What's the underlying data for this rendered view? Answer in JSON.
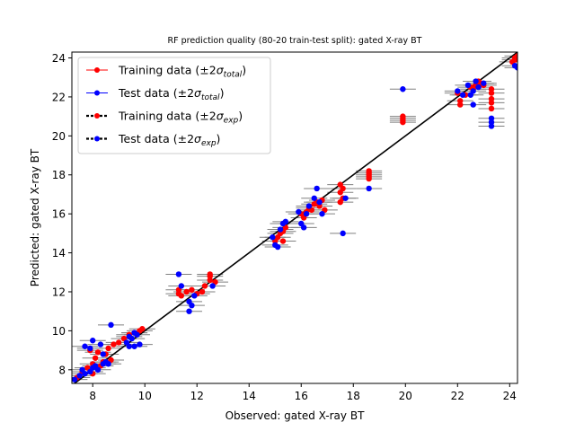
{
  "chart_data": {
    "type": "scatter",
    "title": "RF prediction quality (80-20 train-test split): gated X-ray BT",
    "xlabel": "Observed: gated X-ray BT",
    "ylabel": "Predicted: gated X-ray BT",
    "xlim": [
      7.2,
      24.3
    ],
    "ylim": [
      7.3,
      24.3
    ],
    "xticks": [
      8,
      10,
      12,
      14,
      16,
      18,
      20,
      22,
      24
    ],
    "yticks": [
      8,
      10,
      12,
      14,
      16,
      18,
      20,
      22,
      24
    ],
    "legend_location": "upper-left",
    "legend": [
      {
        "prefix": "Training data (±2",
        "sigma_sub": "total",
        "color": "#ff0000",
        "line_color": "#ff0000",
        "style": "total"
      },
      {
        "prefix": "Test data (±2",
        "sigma_sub": "total",
        "color": "#0000ff",
        "line_color": "#0000ff",
        "style": "total"
      },
      {
        "prefix": "Training data (±2",
        "sigma_sub": "exp",
        "color": "#ff0000",
        "line_color": "#000000",
        "style": "exp"
      },
      {
        "prefix": "Test data (±2",
        "sigma_sub": "exp",
        "color": "#0000ff",
        "line_color": "#000000",
        "style": "exp"
      }
    ],
    "identity_line": {
      "from": [
        7.2,
        7.2
      ],
      "to": [
        24.3,
        24.3
      ],
      "color": "#000000"
    },
    "series": [
      {
        "name": "Training data",
        "color": "#ff0000",
        "x_error": 0.5,
        "points": [
          [
            7.4,
            7.6
          ],
          [
            7.6,
            7.9
          ],
          [
            7.8,
            8.1
          ],
          [
            8.0,
            8.3
          ],
          [
            8.1,
            8.6
          ],
          [
            8.2,
            8.9
          ],
          [
            8.3,
            8.2
          ],
          [
            8.5,
            8.8
          ],
          [
            8.6,
            9.1
          ],
          [
            8.8,
            9.3
          ],
          [
            9.0,
            9.4
          ],
          [
            9.2,
            9.6
          ],
          [
            9.4,
            9.8
          ],
          [
            9.6,
            9.9
          ],
          [
            9.8,
            10.0
          ],
          [
            9.9,
            10.1
          ],
          [
            8.0,
            7.8
          ],
          [
            8.4,
            8.4
          ],
          [
            7.9,
            9.0
          ],
          [
            8.7,
            8.5
          ],
          [
            11.3,
            11.9
          ],
          [
            11.3,
            12.1
          ],
          [
            11.4,
            11.8
          ],
          [
            11.6,
            12.0
          ],
          [
            11.8,
            12.1
          ],
          [
            12.0,
            11.9
          ],
          [
            12.2,
            12.0
          ],
          [
            12.5,
            12.6
          ],
          [
            12.5,
            12.8
          ],
          [
            12.5,
            12.9
          ],
          [
            12.3,
            12.3
          ],
          [
            12.7,
            12.5
          ],
          [
            15.0,
            14.6
          ],
          [
            15.1,
            14.8
          ],
          [
            15.2,
            15.0
          ],
          [
            15.3,
            15.1
          ],
          [
            15.3,
            14.6
          ],
          [
            15.4,
            15.3
          ],
          [
            16.0,
            16.0
          ],
          [
            16.1,
            15.8
          ],
          [
            16.2,
            16.1
          ],
          [
            16.3,
            16.3
          ],
          [
            16.4,
            16.2
          ],
          [
            16.5,
            16.5
          ],
          [
            16.6,
            16.6
          ],
          [
            16.7,
            16.4
          ],
          [
            16.8,
            16.7
          ],
          [
            16.9,
            16.2
          ],
          [
            17.5,
            17.5
          ],
          [
            17.6,
            17.3
          ],
          [
            17.5,
            17.1
          ],
          [
            17.6,
            16.8
          ],
          [
            17.5,
            16.6
          ],
          [
            18.6,
            18.2
          ],
          [
            18.6,
            18.1
          ],
          [
            18.6,
            18.0
          ],
          [
            18.6,
            17.9
          ],
          [
            18.6,
            17.8
          ],
          [
            19.9,
            21.0
          ],
          [
            19.9,
            20.8
          ],
          [
            19.9,
            20.9
          ],
          [
            19.9,
            20.7
          ],
          [
            22.0,
            22.2
          ],
          [
            22.1,
            21.8
          ],
          [
            22.1,
            21.6
          ],
          [
            22.3,
            22.1
          ],
          [
            22.5,
            22.5
          ],
          [
            22.6,
            22.4
          ],
          [
            22.7,
            22.6
          ],
          [
            22.8,
            22.8
          ],
          [
            22.9,
            22.7
          ],
          [
            23.0,
            22.6
          ],
          [
            23.3,
            22.4
          ],
          [
            23.3,
            22.2
          ],
          [
            23.3,
            21.9
          ],
          [
            23.3,
            21.7
          ],
          [
            23.3,
            21.4
          ],
          [
            24.2,
            24.0
          ],
          [
            24.2,
            23.9
          ],
          [
            24.3,
            24.1
          ],
          [
            24.1,
            23.8
          ]
        ]
      },
      {
        "name": "Test data",
        "color": "#0000ff",
        "x_error": 0.5,
        "points": [
          [
            7.3,
            7.5
          ],
          [
            7.5,
            7.7
          ],
          [
            7.6,
            8.0
          ],
          [
            7.7,
            7.8
          ],
          [
            7.9,
            7.9
          ],
          [
            8.0,
            8.1
          ],
          [
            8.1,
            8.2
          ],
          [
            8.2,
            8.0
          ],
          [
            8.4,
            8.3
          ],
          [
            8.5,
            8.4
          ],
          [
            8.6,
            8.3
          ],
          [
            7.7,
            9.2
          ],
          [
            7.9,
            9.1
          ],
          [
            8.0,
            9.5
          ],
          [
            8.3,
            9.3
          ],
          [
            8.7,
            10.3
          ],
          [
            8.4,
            8.8
          ],
          [
            9.3,
            9.4
          ],
          [
            9.4,
            9.7
          ],
          [
            9.5,
            9.6
          ],
          [
            9.6,
            9.9
          ],
          [
            9.6,
            9.2
          ],
          [
            9.8,
            9.3
          ],
          [
            9.4,
            9.2
          ],
          [
            9.7,
            9.8
          ],
          [
            11.3,
            12.9
          ],
          [
            11.4,
            12.3
          ],
          [
            11.7,
            11.0
          ],
          [
            11.7,
            11.5
          ],
          [
            11.8,
            11.3
          ],
          [
            11.9,
            11.8
          ],
          [
            12.6,
            12.3
          ],
          [
            14.9,
            14.8
          ],
          [
            15.0,
            14.4
          ],
          [
            15.1,
            14.3
          ],
          [
            15.2,
            15.2
          ],
          [
            15.3,
            15.5
          ],
          [
            15.4,
            15.6
          ],
          [
            15.9,
            16.1
          ],
          [
            16.0,
            15.5
          ],
          [
            16.1,
            15.3
          ],
          [
            16.2,
            16.0
          ],
          [
            16.3,
            16.4
          ],
          [
            16.5,
            16.8
          ],
          [
            16.6,
            17.3
          ],
          [
            16.7,
            16.6
          ],
          [
            16.8,
            16.0
          ],
          [
            17.6,
            15.0
          ],
          [
            17.7,
            16.8
          ],
          [
            18.6,
            17.3
          ],
          [
            19.9,
            22.4
          ],
          [
            22.0,
            22.3
          ],
          [
            22.2,
            22.1
          ],
          [
            22.4,
            22.6
          ],
          [
            22.5,
            22.1
          ],
          [
            22.6,
            22.3
          ],
          [
            22.7,
            22.8
          ],
          [
            22.8,
            22.5
          ],
          [
            23.0,
            22.7
          ],
          [
            22.6,
            21.6
          ],
          [
            23.3,
            20.9
          ],
          [
            23.3,
            20.5
          ],
          [
            23.3,
            20.7
          ],
          [
            24.3,
            23.5
          ],
          [
            24.2,
            23.6
          ]
        ]
      }
    ]
  }
}
